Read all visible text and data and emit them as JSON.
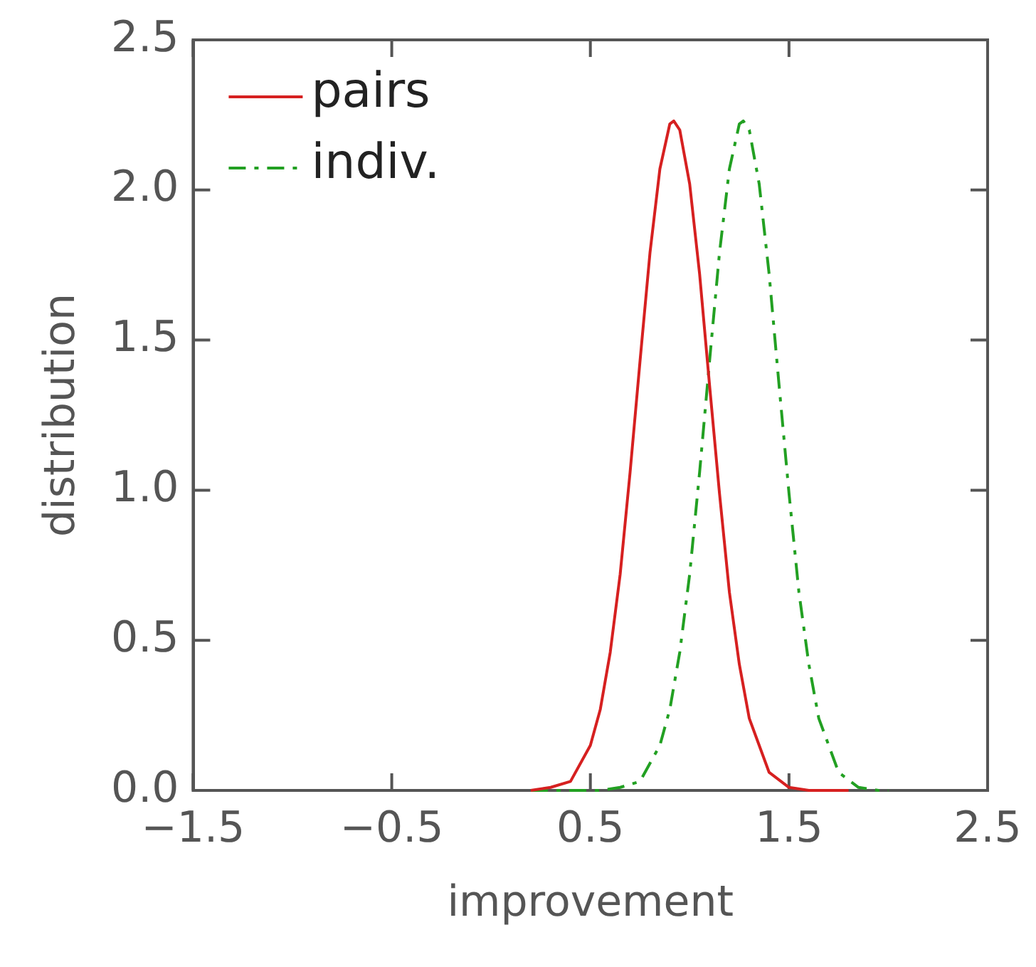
{
  "chart_data": {
    "type": "line",
    "xlabel": "improvement",
    "ylabel": "distribution",
    "xlim": [
      -1.5,
      2.5
    ],
    "xticks": [
      {
        "value": -1.5,
        "label": "−1.5"
      },
      {
        "value": -0.5,
        "label": "−0.5"
      },
      0.5,
      1.5,
      2.5
    ],
    "ylim": [
      0,
      2.5
    ],
    "yticks": [
      {
        "value": 0,
        "label": "0.0"
      },
      0.5,
      {
        "value": 1,
        "label": "1.0"
      },
      1.5,
      {
        "value": 2,
        "label": "2.0"
      },
      2.5
    ],
    "legend": "top left",
    "grid": false,
    "marker": "none",
    "series": [
      {
        "name": "pairs",
        "color": "#d62020",
        "line_style": "solid",
        "x": [
          0.2,
          0.3,
          0.4,
          0.5,
          0.55,
          0.6,
          0.65,
          0.7,
          0.75,
          0.8,
          0.85,
          0.9,
          0.92,
          0.95,
          1.0,
          1.05,
          1.1,
          1.15,
          1.2,
          1.25,
          1.3,
          1.4,
          1.5,
          1.6,
          1.8
        ],
        "values": [
          0,
          0.01,
          0.03,
          0.15,
          0.27,
          0.46,
          0.72,
          1.06,
          1.43,
          1.79,
          2.07,
          2.22,
          2.23,
          2.2,
          2.02,
          1.72,
          1.35,
          0.99,
          0.66,
          0.42,
          0.24,
          0.06,
          0.01,
          0,
          0
        ]
      },
      {
        "name": "indiv.",
        "color": "#22a022",
        "line_style": "dashed",
        "x": [
          0.2,
          0.55,
          0.65,
          0.75,
          0.85,
          0.9,
          0.95,
          1.0,
          1.05,
          1.1,
          1.15,
          1.2,
          1.25,
          1.27,
          1.3,
          1.35,
          1.4,
          1.45,
          1.5,
          1.55,
          1.6,
          1.65,
          1.75,
          1.85,
          1.95,
          2.0
        ],
        "values": [
          0,
          0,
          0.01,
          0.03,
          0.15,
          0.27,
          0.46,
          0.72,
          1.06,
          1.43,
          1.79,
          2.07,
          2.22,
          2.23,
          2.2,
          2.02,
          1.72,
          1.35,
          0.99,
          0.66,
          0.42,
          0.24,
          0.06,
          0.01,
          0,
          0
        ]
      }
    ]
  }
}
